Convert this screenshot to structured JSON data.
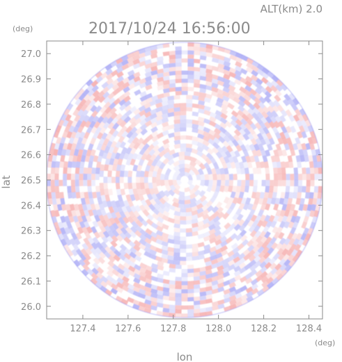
{
  "chart_data": {
    "type": "heatmap",
    "title": "2017/10/24 16:56:00",
    "subtitle": "ALT(km) 2.0",
    "xlabel": "lon",
    "ylabel": "lat",
    "x_unit": "(deg)",
    "y_unit": "(deg)",
    "xlim": [
      127.24,
      128.46
    ],
    "ylim": [
      25.95,
      27.05
    ],
    "x_ticks": [
      "127.4",
      "127.6",
      "127.8",
      "128.0",
      "128.2",
      "128.4"
    ],
    "y_ticks": [
      "26.0",
      "26.1",
      "26.2",
      "26.3",
      "26.4",
      "26.5",
      "26.6",
      "26.7",
      "26.8",
      "26.9",
      "27.0"
    ],
    "center": [
      127.85,
      26.5
    ],
    "radius_lat_deg": 0.545,
    "colors": {
      "positive": "#f08080",
      "negative": "#8080f0",
      "axis": "#8a8a8a",
      "background": "#ffffff"
    }
  }
}
